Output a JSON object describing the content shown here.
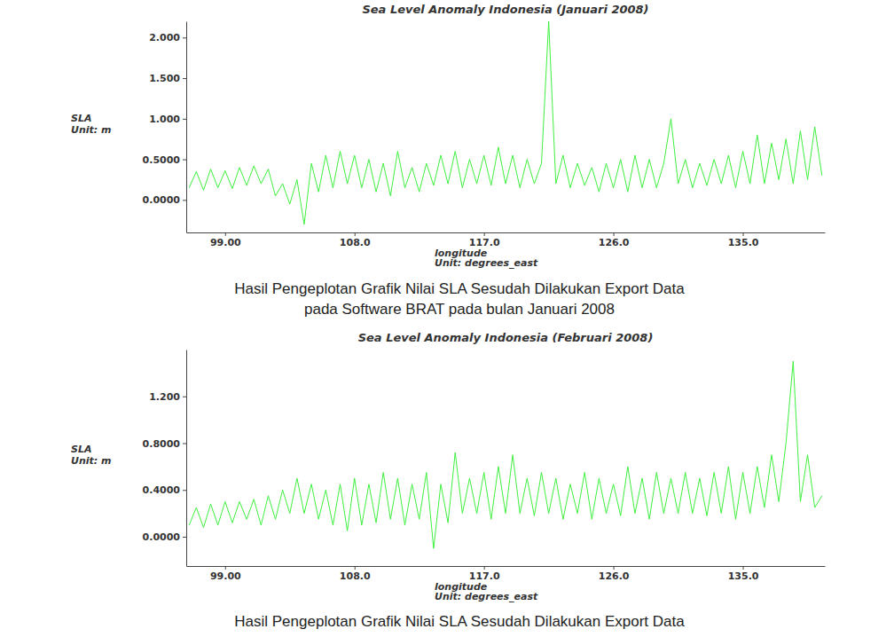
{
  "chart_data": [
    {
      "type": "line",
      "title": "Sea Level Anomaly Indonesia (Januari 2008)",
      "xlabel": [
        "longitude",
        "Unit: degrees_east"
      ],
      "ylabel": [
        "SLA",
        "Unit: m"
      ],
      "color": "#3ef03e",
      "grid": false,
      "xlim": [
        96.3,
        140.7
      ],
      "xticks": [
        {
          "value": 99,
          "label": "99.00"
        },
        {
          "value": 108,
          "label": "108.0"
        },
        {
          "value": 117,
          "label": "117.0"
        },
        {
          "value": 126,
          "label": "126.0"
        },
        {
          "value": 135,
          "label": "135.0"
        }
      ],
      "ylim": [
        -0.4,
        2.2
      ],
      "yticks": [
        {
          "value": 0,
          "label": "0.0000"
        },
        {
          "value": 0.5,
          "label": "0.5000"
        },
        {
          "value": 1,
          "label": "1.000"
        },
        {
          "value": 1.5,
          "label": "1.500"
        },
        {
          "value": 2,
          "label": "2.000"
        }
      ],
      "x": [
        96.5,
        97,
        97.5,
        98,
        98.5,
        99,
        99.5,
        100,
        100.5,
        101,
        101.5,
        102,
        102.5,
        103,
        103.5,
        104,
        104.5,
        105,
        105.5,
        106,
        106.5,
        107,
        107.5,
        108,
        108.5,
        109,
        109.5,
        110,
        110.5,
        111,
        111.5,
        112,
        112.5,
        113,
        113.5,
        114,
        114.5,
        115,
        115.5,
        116,
        116.5,
        117,
        117.5,
        118,
        118.5,
        119,
        119.5,
        120,
        120.5,
        121,
        121.5,
        122,
        122.5,
        123,
        123.5,
        124,
        124.5,
        125,
        125.5,
        126,
        126.5,
        127,
        127.5,
        128,
        128.5,
        129,
        129.5,
        130,
        130.5,
        131,
        131.5,
        132,
        132.5,
        133,
        133.5,
        134,
        134.5,
        135,
        135.5,
        136,
        136.5,
        137,
        137.5,
        138,
        138.5,
        139,
        139.5,
        140,
        140.5
      ],
      "values": [
        0.15,
        0.35,
        0.12,
        0.38,
        0.15,
        0.36,
        0.14,
        0.4,
        0.18,
        0.42,
        0.2,
        0.38,
        0.05,
        0.2,
        -0.05,
        0.25,
        -0.3,
        0.45,
        0.1,
        0.55,
        0.15,
        0.6,
        0.2,
        0.55,
        0.15,
        0.5,
        0.1,
        0.45,
        0.05,
        0.6,
        0.15,
        0.4,
        0.1,
        0.45,
        0.18,
        0.55,
        0.2,
        0.6,
        0.15,
        0.5,
        0.2,
        0.55,
        0.18,
        0.65,
        0.2,
        0.55,
        0.15,
        0.5,
        0.2,
        0.45,
        2.2,
        0.2,
        0.55,
        0.15,
        0.45,
        0.18,
        0.4,
        0.1,
        0.45,
        0.15,
        0.5,
        0.1,
        0.55,
        0.15,
        0.5,
        0.15,
        0.45,
        1.0,
        0.2,
        0.5,
        0.15,
        0.45,
        0.18,
        0.5,
        0.2,
        0.55,
        0.15,
        0.6,
        0.2,
        0.8,
        0.2,
        0.7,
        0.25,
        0.75,
        0.2,
        0.85,
        0.25,
        0.9,
        0.3
      ]
    },
    {
      "type": "line",
      "title": "Sea Level Anomaly Indonesia (Februari 2008)",
      "xlabel": [
        "longitude",
        "Unit: degrees_east"
      ],
      "ylabel": [
        "SLA",
        "Unit: m"
      ],
      "color": "#3ef03e",
      "grid": false,
      "xlim": [
        96.3,
        140.7
      ],
      "xticks": [
        {
          "value": 99,
          "label": "99.00"
        },
        {
          "value": 108,
          "label": "108.0"
        },
        {
          "value": 117,
          "label": "117.0"
        },
        {
          "value": 126,
          "label": "126.0"
        },
        {
          "value": 135,
          "label": "135.0"
        }
      ],
      "ylim": [
        -0.25,
        1.6
      ],
      "yticks": [
        {
          "value": 0,
          "label": "0.0000"
        },
        {
          "value": 0.4,
          "label": "0.4000"
        },
        {
          "value": 0.8,
          "label": "0.8000"
        },
        {
          "value": 1.2,
          "label": "1.200"
        }
      ],
      "x": [
        96.5,
        97,
        97.5,
        98,
        98.5,
        99,
        99.5,
        100,
        100.5,
        101,
        101.5,
        102,
        102.5,
        103,
        103.5,
        104,
        104.5,
        105,
        105.5,
        106,
        106.5,
        107,
        107.5,
        108,
        108.5,
        109,
        109.5,
        110,
        110.5,
        111,
        111.5,
        112,
        112.5,
        113,
        113.5,
        114,
        114.5,
        115,
        115.5,
        116,
        116.5,
        117,
        117.5,
        118,
        118.5,
        119,
        119.5,
        120,
        120.5,
        121,
        121.5,
        122,
        122.5,
        123,
        123.5,
        124,
        124.5,
        125,
        125.5,
        126,
        126.5,
        127,
        127.5,
        128,
        128.5,
        129,
        129.5,
        130,
        130.5,
        131,
        131.5,
        132,
        132.5,
        133,
        133.5,
        134,
        134.5,
        135,
        135.5,
        136,
        136.5,
        137,
        137.5,
        138,
        138.5,
        139,
        139.5,
        140,
        140.5
      ],
      "values": [
        0.1,
        0.25,
        0.08,
        0.28,
        0.1,
        0.3,
        0.12,
        0.3,
        0.15,
        0.32,
        0.1,
        0.35,
        0.15,
        0.4,
        0.2,
        0.5,
        0.2,
        0.45,
        0.15,
        0.4,
        0.1,
        0.45,
        0.05,
        0.5,
        0.1,
        0.45,
        0.12,
        0.55,
        0.15,
        0.5,
        0.1,
        0.45,
        0.15,
        0.55,
        -0.1,
        0.45,
        0.12,
        0.72,
        0.2,
        0.5,
        0.2,
        0.55,
        0.15,
        0.6,
        0.2,
        0.7,
        0.2,
        0.5,
        0.18,
        0.55,
        0.2,
        0.5,
        0.15,
        0.45,
        0.2,
        0.55,
        0.15,
        0.5,
        0.2,
        0.45,
        0.18,
        0.6,
        0.2,
        0.5,
        0.15,
        0.55,
        0.2,
        0.5,
        0.2,
        0.55,
        0.2,
        0.5,
        0.18,
        0.55,
        0.2,
        0.6,
        0.15,
        0.55,
        0.2,
        0.6,
        0.25,
        0.7,
        0.3,
        0.8,
        1.5,
        0.3,
        0.7,
        0.25,
        0.35
      ]
    }
  ],
  "captions": [
    "Hasil Pengeplotan Grafik Nilai SLA Sesudah Dilakukan Export Data",
    "pada Software BRAT pada bulan Januari 2008",
    "Hasil Pengeplotan Grafik Nilai SLA Sesudah Dilakukan Export Data"
  ]
}
